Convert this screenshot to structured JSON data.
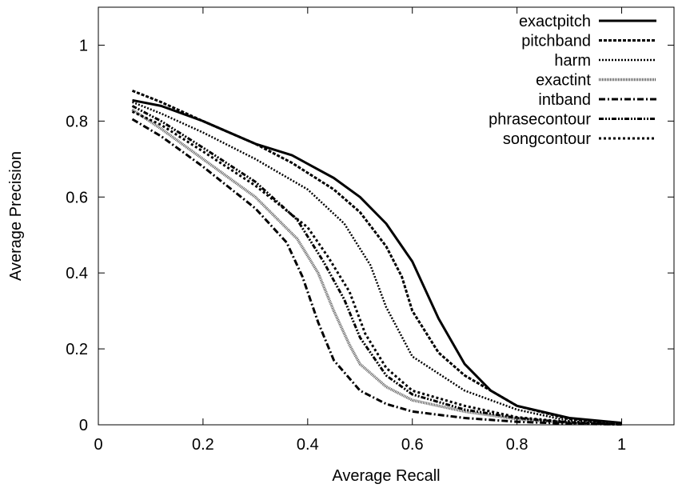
{
  "chart_data": {
    "type": "line",
    "title": "",
    "xlabel": "Average Recall",
    "ylabel": "Average Precision",
    "xlim": [
      0,
      1.1
    ],
    "ylim": [
      0,
      1.1
    ],
    "xticks": [
      0,
      0.2,
      0.4,
      0.6,
      0.8,
      1
    ],
    "xtick_labels": [
      "0",
      "0.2",
      "0.4",
      "0.6",
      "0.8",
      "1"
    ],
    "yticks": [
      0,
      0.2,
      0.4,
      0.6,
      0.8,
      1
    ],
    "ytick_labels": [
      "0",
      "0.2",
      "0.4",
      "0.6",
      "0.8",
      "1"
    ],
    "grid": false,
    "legend_position": "top-right",
    "series": [
      {
        "name": "exactpitch",
        "x": [
          0.065,
          0.12,
          0.2,
          0.3,
          0.37,
          0.45,
          0.5,
          0.55,
          0.6,
          0.65,
          0.7,
          0.75,
          0.8,
          0.9,
          1.0
        ],
        "y": [
          0.855,
          0.84,
          0.8,
          0.74,
          0.71,
          0.65,
          0.6,
          0.53,
          0.43,
          0.28,
          0.16,
          0.09,
          0.05,
          0.018,
          0.005
        ]
      },
      {
        "name": "pitchband",
        "x": [
          0.065,
          0.12,
          0.2,
          0.3,
          0.37,
          0.45,
          0.5,
          0.55,
          0.58,
          0.6,
          0.65,
          0.7,
          0.8,
          0.9,
          1.0
        ],
        "y": [
          0.88,
          0.85,
          0.8,
          0.74,
          0.69,
          0.62,
          0.56,
          0.47,
          0.39,
          0.3,
          0.19,
          0.13,
          0.05,
          0.015,
          0.004
        ]
      },
      {
        "name": "harm",
        "x": [
          0.065,
          0.12,
          0.2,
          0.3,
          0.4,
          0.47,
          0.52,
          0.55,
          0.6,
          0.7,
          0.8,
          0.9,
          1.0
        ],
        "y": [
          0.85,
          0.82,
          0.77,
          0.7,
          0.62,
          0.53,
          0.42,
          0.31,
          0.18,
          0.09,
          0.04,
          0.01,
          0.002
        ]
      },
      {
        "name": "exactint",
        "x": [
          0.065,
          0.12,
          0.2,
          0.3,
          0.38,
          0.42,
          0.45,
          0.48,
          0.5,
          0.55,
          0.6,
          0.7,
          0.8,
          0.9,
          1.0
        ],
        "y": [
          0.83,
          0.78,
          0.7,
          0.6,
          0.49,
          0.4,
          0.3,
          0.21,
          0.16,
          0.1,
          0.065,
          0.035,
          0.015,
          0.005,
          0.001
        ]
      },
      {
        "name": "intband",
        "x": [
          0.065,
          0.12,
          0.2,
          0.3,
          0.36,
          0.39,
          0.42,
          0.45,
          0.5,
          0.55,
          0.6,
          0.7,
          0.8,
          0.9,
          1.0
        ],
        "y": [
          0.805,
          0.76,
          0.68,
          0.57,
          0.48,
          0.39,
          0.27,
          0.17,
          0.09,
          0.055,
          0.035,
          0.018,
          0.008,
          0.003,
          0.001
        ]
      },
      {
        "name": "phrasecontour",
        "x": [
          0.065,
          0.12,
          0.2,
          0.3,
          0.38,
          0.43,
          0.47,
          0.5,
          0.55,
          0.6,
          0.7,
          0.8,
          0.9,
          1.0
        ],
        "y": [
          0.84,
          0.8,
          0.73,
          0.64,
          0.54,
          0.43,
          0.33,
          0.23,
          0.13,
          0.08,
          0.04,
          0.018,
          0.006,
          0.001
        ]
      },
      {
        "name": "songcontour",
        "x": [
          0.065,
          0.12,
          0.2,
          0.3,
          0.4,
          0.44,
          0.48,
          0.51,
          0.55,
          0.6,
          0.7,
          0.8,
          0.9,
          1.0
        ],
        "y": [
          0.825,
          0.79,
          0.72,
          0.63,
          0.52,
          0.44,
          0.35,
          0.24,
          0.15,
          0.09,
          0.05,
          0.02,
          0.007,
          0.001
        ]
      }
    ]
  },
  "styles": {
    "exactpitch": {
      "color": "#000000",
      "width": 3,
      "dash": ""
    },
    "pitchband": {
      "color": "#000000",
      "width": 3,
      "dash": "4 2"
    },
    "harm": {
      "color": "#000000",
      "width": 2.5,
      "dash": "2 2"
    },
    "exactint": {
      "color": "#555555",
      "width": 3.5,
      "dash": "1 1"
    },
    "intband": {
      "color": "#000000",
      "width": 3,
      "dash": "8 3 2 3"
    },
    "phrasecontour": {
      "color": "#000000",
      "width": 3,
      "dash": "6 2 2 2 2 2"
    },
    "songcontour": {
      "color": "#000000",
      "width": 3,
      "dash": "3 3"
    }
  }
}
